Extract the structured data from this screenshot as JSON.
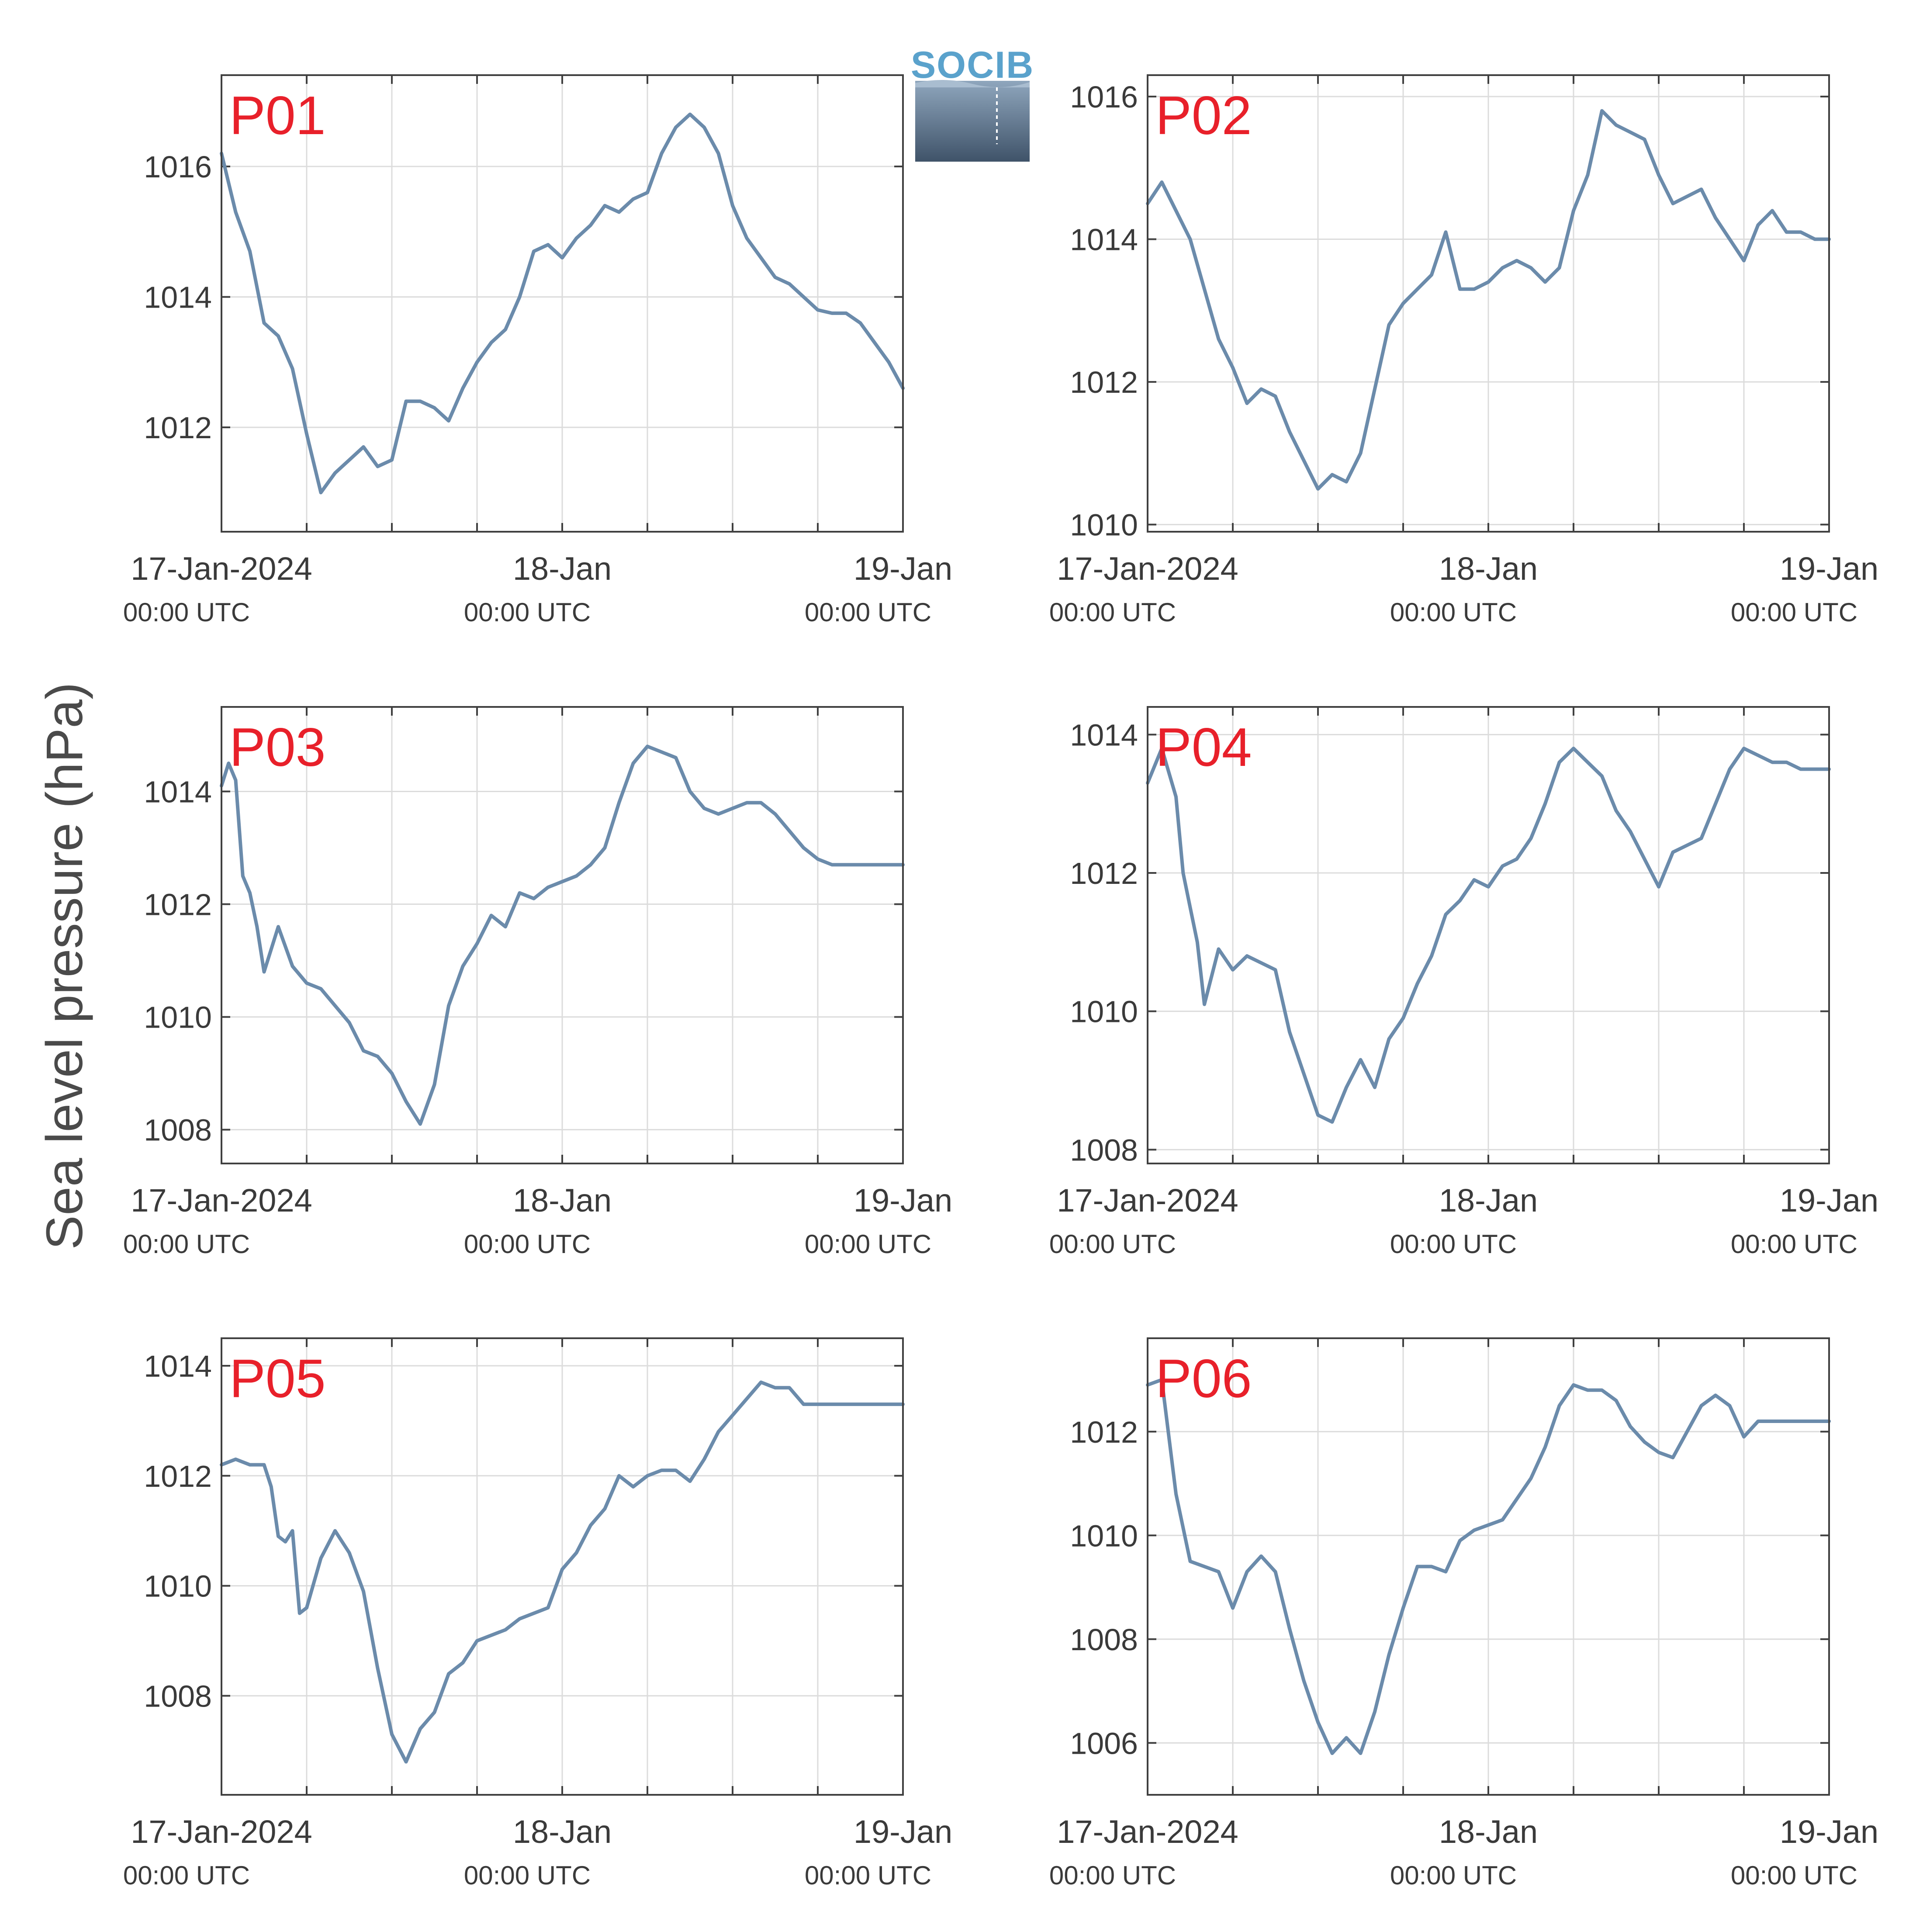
{
  "figure": {
    "ylabel": "Sea level pressure (hPa)",
    "logo": {
      "text": "SOCIB",
      "color_top": "#8fa6bd",
      "color_bottom": "#3f5369",
      "text_color": "#5aa2cc"
    },
    "series_color": "#6b8bab",
    "label_color": "#e8202a",
    "x_ticks": [
      {
        "label": "17-Jan-2024",
        "sub": "00:00 UTC"
      },
      {
        "label": "18-Jan",
        "sub": "00:00 UTC"
      },
      {
        "label": "19-Jan",
        "sub": "00:00 UTC"
      }
    ]
  },
  "chart_data": [
    {
      "type": "line",
      "name": "P01",
      "xlabel": "",
      "ylabel": "",
      "xlim": [
        "2024-01-17 00:00",
        "2024-01-19 00:00"
      ],
      "ylim": [
        1010.4,
        1017.4
      ],
      "yticks": [
        1012,
        1014,
        1016
      ],
      "grid": true,
      "x_hours": [
        0,
        1,
        2,
        3,
        4,
        5,
        6,
        7,
        8,
        9,
        10,
        11,
        12,
        13,
        14,
        15,
        16,
        17,
        18,
        19,
        20,
        21,
        22,
        23,
        24,
        25,
        26,
        27,
        28,
        29,
        30,
        31,
        32,
        33,
        34,
        35,
        36,
        37,
        38,
        39,
        40,
        41,
        42,
        43,
        44,
        45,
        46,
        47,
        48
      ],
      "y": [
        1016.2,
        1015.3,
        1014.7,
        1013.6,
        1013.4,
        1012.9,
        1011.9,
        1011.0,
        1011.3,
        1011.5,
        1011.7,
        1011.4,
        1011.5,
        1012.4,
        1012.4,
        1012.3,
        1012.1,
        1012.6,
        1013.0,
        1013.3,
        1013.5,
        1014.0,
        1014.7,
        1014.8,
        1014.6,
        1014.9,
        1015.1,
        1015.4,
        1015.3,
        1015.5,
        1015.6,
        1016.2,
        1016.6,
        1016.8,
        1016.6,
        1016.2,
        1015.4,
        1014.9,
        1014.6,
        1014.3,
        1014.2,
        1014.0,
        1013.8,
        1013.75,
        1013.75,
        1013.6,
        1013.3,
        1013.0,
        1012.6
      ]
    },
    {
      "type": "line",
      "name": "P02",
      "xlabel": "",
      "ylabel": "",
      "xlim": [
        "2024-01-17 00:00",
        "2024-01-19 00:00"
      ],
      "ylim": [
        1009.9,
        1016.3
      ],
      "yticks": [
        1010,
        1012,
        1014,
        1016
      ],
      "grid": true,
      "x_hours": [
        0,
        1,
        2,
        3,
        4,
        5,
        6,
        7,
        8,
        9,
        10,
        11,
        12,
        13,
        14,
        15,
        16,
        17,
        18,
        19,
        20,
        21,
        22,
        23,
        24,
        25,
        26,
        27,
        28,
        29,
        30,
        31,
        32,
        33,
        34,
        35,
        36,
        37,
        38,
        39,
        40,
        41,
        42,
        43,
        44,
        45,
        46,
        47,
        48
      ],
      "y": [
        1014.5,
        1014.8,
        1014.4,
        1014.0,
        1013.3,
        1012.6,
        1012.2,
        1011.7,
        1011.9,
        1011.8,
        1011.3,
        1010.9,
        1010.5,
        1010.7,
        1010.6,
        1011.0,
        1011.9,
        1012.8,
        1013.1,
        1013.3,
        1013.5,
        1014.1,
        1013.3,
        1013.3,
        1013.4,
        1013.6,
        1013.7,
        1013.6,
        1013.4,
        1013.6,
        1014.4,
        1014.9,
        1015.8,
        1015.6,
        1015.5,
        1015.4,
        1014.9,
        1014.5,
        1014.6,
        1014.7,
        1014.3,
        1014.0,
        1013.7,
        1014.2,
        1014.4,
        1014.1,
        1014.1,
        1014.0,
        1014.0
      ]
    },
    {
      "type": "line",
      "name": "P03",
      "xlabel": "",
      "ylabel": "",
      "xlim": [
        "2024-01-17 00:00",
        "2024-01-19 00:00"
      ],
      "ylim": [
        1007.4,
        1015.5
      ],
      "yticks": [
        1008,
        1010,
        1012,
        1014
      ],
      "grid": true,
      "x_hours": [
        0,
        0.5,
        1,
        1.5,
        2,
        2.5,
        3,
        4,
        5,
        6,
        7,
        8,
        9,
        10,
        11,
        12,
        13,
        14,
        15,
        16,
        17,
        18,
        19,
        20,
        21,
        22,
        23,
        24,
        25,
        26,
        27,
        28,
        29,
        30,
        31,
        32,
        33,
        34,
        35,
        36,
        37,
        38,
        39,
        40,
        41,
        42,
        43,
        44,
        45,
        46,
        47,
        48
      ],
      "y": [
        1014.1,
        1014.5,
        1014.2,
        1012.5,
        1012.2,
        1011.6,
        1010.8,
        1011.6,
        1010.9,
        1010.6,
        1010.5,
        1010.2,
        1009.9,
        1009.4,
        1009.3,
        1009.0,
        1008.5,
        1008.1,
        1008.8,
        1010.2,
        1010.9,
        1011.3,
        1011.8,
        1011.6,
        1012.2,
        1012.1,
        1012.3,
        1012.4,
        1012.5,
        1012.7,
        1013.0,
        1013.8,
        1014.5,
        1014.8,
        1014.7,
        1014.6,
        1014.0,
        1013.7,
        1013.6,
        1013.7,
        1013.8,
        1013.8,
        1013.6,
        1013.3,
        1013.0,
        1012.8,
        1012.7,
        1012.7,
        1012.7,
        1012.7,
        1012.7,
        1012.7
      ]
    },
    {
      "type": "line",
      "name": "P04",
      "xlabel": "",
      "ylabel": "",
      "xlim": [
        "2024-01-17 00:00",
        "2024-01-19 00:00"
      ],
      "ylim": [
        1007.8,
        1014.4
      ],
      "yticks": [
        1008,
        1010,
        1012,
        1014
      ],
      "grid": true,
      "x_hours": [
        0,
        1,
        2,
        2.5,
        3,
        3.5,
        4,
        5,
        6,
        7,
        8,
        9,
        10,
        11,
        12,
        13,
        14,
        15,
        16,
        17,
        18,
        19,
        20,
        21,
        22,
        23,
        24,
        25,
        26,
        27,
        28,
        29,
        30,
        31,
        32,
        33,
        34,
        35,
        36,
        37,
        38,
        39,
        40,
        41,
        42,
        43,
        44,
        45,
        46,
        47,
        48
      ],
      "y": [
        1013.3,
        1013.8,
        1013.1,
        1012.0,
        1011.5,
        1011.0,
        1010.1,
        1010.9,
        1010.6,
        1010.8,
        1010.7,
        1010.6,
        1009.7,
        1009.1,
        1008.5,
        1008.4,
        1008.9,
        1009.3,
        1008.9,
        1009.6,
        1009.9,
        1010.4,
        1010.8,
        1011.4,
        1011.6,
        1011.9,
        1011.8,
        1012.1,
        1012.2,
        1012.5,
        1013.0,
        1013.6,
        1013.8,
        1013.6,
        1013.4,
        1012.9,
        1012.6,
        1012.2,
        1011.8,
        1012.3,
        1012.4,
        1012.5,
        1013.0,
        1013.5,
        1013.8,
        1013.7,
        1013.6,
        1013.6,
        1013.5,
        1013.5,
        1013.5
      ]
    },
    {
      "type": "line",
      "name": "P05",
      "xlabel": "",
      "ylabel": "",
      "xlim": [
        "2024-01-17 00:00",
        "2024-01-19 00:00"
      ],
      "ylim": [
        1006.2,
        1014.5
      ],
      "yticks": [
        1008,
        1010,
        1012,
        1014
      ],
      "grid": true,
      "x_hours": [
        0,
        1,
        2,
        3,
        3.5,
        4,
        4.5,
        5,
        5.5,
        6,
        7,
        8,
        9,
        10,
        11,
        12,
        13,
        14,
        15,
        16,
        17,
        18,
        19,
        20,
        21,
        22,
        23,
        24,
        25,
        26,
        27,
        28,
        29,
        30,
        31,
        32,
        33,
        34,
        35,
        36,
        37,
        38,
        39,
        40,
        41,
        42,
        43,
        44,
        45,
        46,
        47,
        48
      ],
      "y": [
        1012.2,
        1012.3,
        1012.2,
        1012.2,
        1011.8,
        1010.9,
        1010.8,
        1011.0,
        1009.5,
        1009.6,
        1010.5,
        1011.0,
        1010.6,
        1009.9,
        1008.5,
        1007.3,
        1006.8,
        1007.4,
        1007.7,
        1008.4,
        1008.6,
        1009.0,
        1009.1,
        1009.2,
        1009.4,
        1009.5,
        1009.6,
        1010.3,
        1010.6,
        1011.1,
        1011.4,
        1012.0,
        1011.8,
        1012.0,
        1012.1,
        1012.1,
        1011.9,
        1012.3,
        1012.8,
        1013.1,
        1013.4,
        1013.7,
        1013.6,
        1013.6,
        1013.3,
        1013.3,
        1013.3,
        1013.3,
        1013.3,
        1013.3,
        1013.3,
        1013.3
      ]
    },
    {
      "type": "line",
      "name": "P06",
      "xlabel": "",
      "ylabel": "",
      "xlim": [
        "2024-01-17 00:00",
        "2024-01-19 00:00"
      ],
      "ylim": [
        1005.0,
        1013.8
      ],
      "yticks": [
        1006,
        1008,
        1010,
        1012
      ],
      "grid": true,
      "x_hours": [
        0,
        1,
        2,
        3,
        4,
        5,
        6,
        7,
        8,
        9,
        10,
        11,
        12,
        13,
        14,
        15,
        16,
        17,
        18,
        19,
        20,
        21,
        22,
        23,
        24,
        25,
        26,
        27,
        28,
        29,
        30,
        31,
        32,
        33,
        34,
        35,
        36,
        37,
        38,
        39,
        40,
        41,
        42,
        43,
        44,
        45,
        46,
        47,
        48
      ],
      "y": [
        1012.9,
        1013.0,
        1010.8,
        1009.5,
        1009.4,
        1009.3,
        1008.6,
        1009.3,
        1009.6,
        1009.3,
        1008.2,
        1007.2,
        1006.4,
        1005.8,
        1006.1,
        1005.8,
        1006.6,
        1007.7,
        1008.6,
        1009.4,
        1009.4,
        1009.3,
        1009.9,
        1010.1,
        1010.2,
        1010.3,
        1010.7,
        1011.1,
        1011.7,
        1012.5,
        1012.9,
        1012.8,
        1012.8,
        1012.6,
        1012.1,
        1011.8,
        1011.6,
        1011.5,
        1012.0,
        1012.5,
        1012.7,
        1012.5,
        1011.9,
        1012.2,
        1012.2,
        1012.2,
        1012.2,
        1012.2,
        1012.2
      ]
    }
  ]
}
